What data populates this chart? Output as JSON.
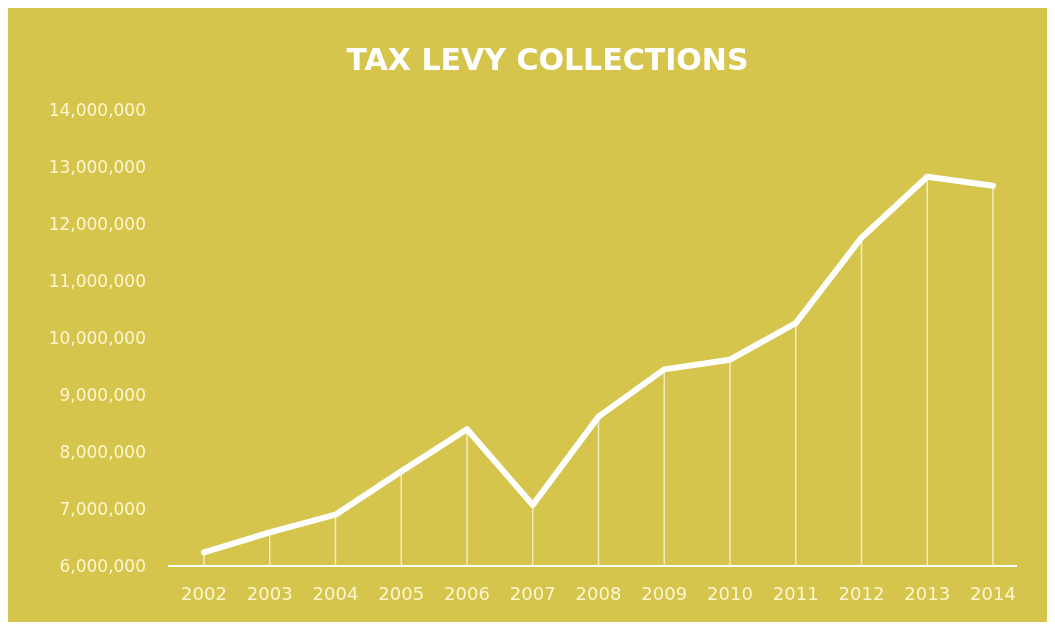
{
  "chart_data": {
    "type": "line",
    "title": "TAX LEVY COLLECTIONS",
    "categories": [
      "2002",
      "2003",
      "2004",
      "2005",
      "2006",
      "2007",
      "2008",
      "2009",
      "2010",
      "2011",
      "2012",
      "2013",
      "2014"
    ],
    "series": [
      {
        "type": "bar",
        "color": "#f3ecc0",
        "values": [
          6240000,
          6590000,
          6900000,
          7660000,
          8400000,
          7070000,
          8620000,
          9450000,
          9620000,
          10260000,
          11760000,
          12830000,
          12670000
        ]
      },
      {
        "color": "#ffffff",
        "values": [
          6240000,
          6590000,
          6900000,
          7660000,
          8400000,
          7070000,
          8620000,
          9450000,
          9620000,
          10260000,
          11760000,
          12830000,
          12670000
        ]
      }
    ],
    "ylim": [
      6000000,
      14000000
    ],
    "yticks": [
      {
        "value": 6000000,
        "label": "6,000,000"
      },
      {
        "value": 7000000,
        "label": "7,000,000"
      },
      {
        "value": 8000000,
        "label": "8,000,000"
      },
      {
        "value": 9000000,
        "label": "9,000,000"
      },
      {
        "value": 10000000,
        "label": "10,000,000"
      },
      {
        "value": 11000000,
        "label": "11,000,000"
      },
      {
        "value": 12000000,
        "label": "12,000,000"
      },
      {
        "value": 13000000,
        "label": "13,000,000"
      },
      {
        "value": 14000000,
        "label": "14,000,000"
      }
    ],
    "grid": false,
    "marker": "none",
    "line_style": "solid"
  }
}
